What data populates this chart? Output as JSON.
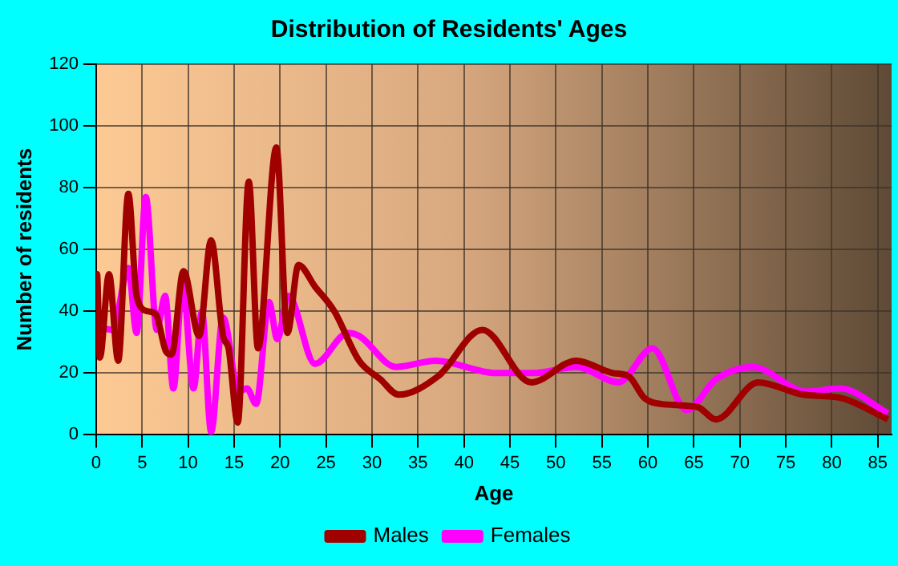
{
  "chart_data": {
    "type": "line",
    "title": "Distribution of Residents' Ages",
    "xlabel": "Age",
    "ylabel": "Number of residents",
    "xlim": [
      0,
      86.5
    ],
    "xticks": [
      0,
      5,
      10,
      15,
      20,
      25,
      30,
      35,
      40,
      45,
      50,
      55,
      60,
      65,
      70,
      75,
      80,
      85
    ],
    "ylim": [
      0,
      120
    ],
    "yticks": [
      0,
      20,
      40,
      60,
      80,
      100,
      120
    ],
    "grid": true,
    "legend": "bottom",
    "line_style": "solid",
    "marker": "none",
    "series": [
      {
        "name": "Males",
        "color": "#a00000",
        "x": [
          0,
          0.1,
          0.4,
          1.4,
          2.4,
          3.5,
          4.4,
          5.6,
          6.5,
          7.6,
          8.2,
          9.5,
          11.2,
          12.5,
          13.8,
          14.4,
          15.4,
          16.6,
          17.6,
          19.6,
          20.8,
          22,
          23.8,
          25.9,
          28.6,
          30.9,
          32.9,
          37.2,
          42,
          47.3,
          52.2,
          56.2,
          57.9,
          59.6,
          61.4,
          65.4,
          67.4,
          72,
          76.9,
          80.9,
          86.1
        ],
        "values": [
          33,
          52,
          25,
          52,
          24,
          78,
          45,
          40,
          39,
          27,
          26,
          53,
          32,
          63,
          32,
          28,
          4,
          82,
          28,
          93,
          33,
          55,
          48,
          40,
          24,
          18,
          13,
          19,
          34,
          17,
          24,
          20,
          19,
          12,
          10,
          9,
          5,
          17,
          13,
          12,
          5
        ]
      },
      {
        "name": "Females",
        "color": "#ff00ff",
        "x": [
          0.1,
          1.8,
          3.5,
          4.4,
          5.4,
          6.6,
          7.5,
          8.4,
          9.4,
          10.6,
          11.5,
          12.5,
          13.8,
          15.5,
          16.4,
          17.4,
          18.8,
          19.7,
          20.9,
          23.8,
          27.4,
          28.6,
          32.6,
          36.9,
          43.5,
          47.6,
          52.2,
          56.8,
          60.5,
          64.2,
          67.4,
          71.4,
          77.2,
          80.9,
          86.1
        ],
        "values": [
          35,
          34,
          54,
          33,
          77,
          34,
          45,
          15,
          49,
          15,
          40,
          1,
          38,
          14,
          15,
          10,
          43,
          31,
          45,
          23,
          33,
          32,
          22,
          24,
          20,
          20,
          22,
          17,
          28,
          8,
          18,
          22,
          14,
          15,
          7
        ]
      }
    ]
  }
}
